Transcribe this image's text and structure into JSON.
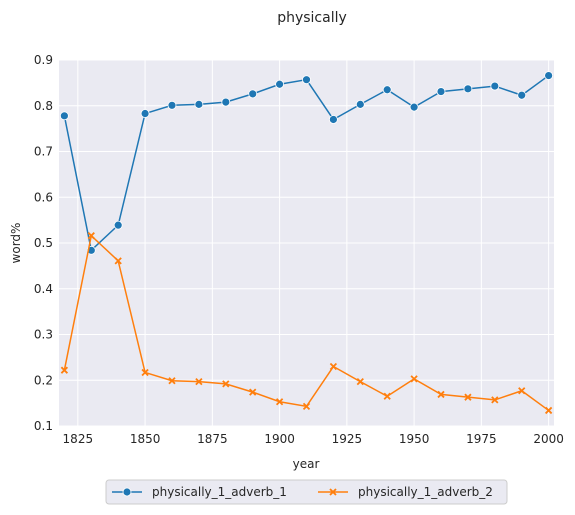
{
  "chart_data": {
    "type": "line",
    "title": "physically",
    "xlabel": "year",
    "ylabel": "word%",
    "xlim": [
      1818,
      2002
    ],
    "ylim": [
      0.1,
      0.9
    ],
    "xticks": [
      1825,
      1850,
      1875,
      1900,
      1925,
      1950,
      1975,
      2000
    ],
    "yticks": [
      0.1,
      0.2,
      0.3,
      0.4,
      0.5,
      0.6,
      0.7,
      0.8,
      0.9
    ],
    "grid": true,
    "legend_position": "bottom-center",
    "x": [
      1820,
      1830,
      1840,
      1850,
      1860,
      1870,
      1880,
      1890,
      1900,
      1910,
      1920,
      1930,
      1940,
      1950,
      1960,
      1970,
      1980,
      1990,
      2000
    ],
    "series": [
      {
        "name": "physically_1_adverb_1",
        "color": "#1f77b4",
        "marker": "circle",
        "values": [
          0.778,
          0.484,
          0.539,
          0.783,
          0.801,
          0.803,
          0.808,
          0.826,
          0.847,
          0.857,
          0.77,
          0.803,
          0.835,
          0.797,
          0.831,
          0.837,
          0.843,
          0.823,
          0.866
        ]
      },
      {
        "name": "physically_1_adverb_2",
        "color": "#ff7f0e",
        "marker": "x",
        "values": [
          0.222,
          0.516,
          0.461,
          0.217,
          0.199,
          0.197,
          0.192,
          0.174,
          0.153,
          0.143,
          0.23,
          0.197,
          0.165,
          0.203,
          0.169,
          0.163,
          0.157,
          0.177,
          0.134
        ]
      }
    ]
  }
}
